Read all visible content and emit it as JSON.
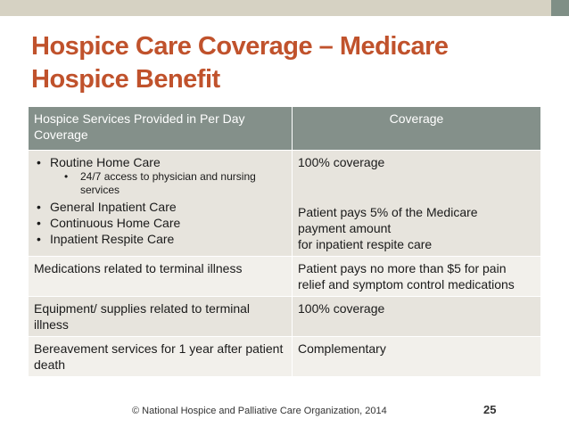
{
  "title_line1": "Hospice Care Coverage – Medicare",
  "title_line2": "Hospice Benefit",
  "table": {
    "header": [
      "Hospice Services Provided in Per Day Coverage",
      "Coverage"
    ],
    "row1": {
      "items": [
        "Routine Home Care",
        "24/7 access to physician and nursing services",
        "General Inpatient Care",
        "Continuous Home Care",
        "Inpatient Respite Care"
      ],
      "coverage_a": "100% coverage",
      "coverage_b_lines": [
        "Patient pays 5% of the Medicare",
        "payment amount",
        "for inpatient respite care"
      ]
    },
    "row2": [
      "Medications related to terminal illness",
      "Patient pays no more than $5 for pain relief and symptom control medications"
    ],
    "row3": [
      "Equipment/ supplies related to terminal illness",
      "100% coverage"
    ],
    "row4": [
      "Bereavement services for 1 year after patient death",
      "Complementary"
    ]
  },
  "footer": "© National Hospice and Palliative Care Organization, 2014",
  "page_number": "25"
}
